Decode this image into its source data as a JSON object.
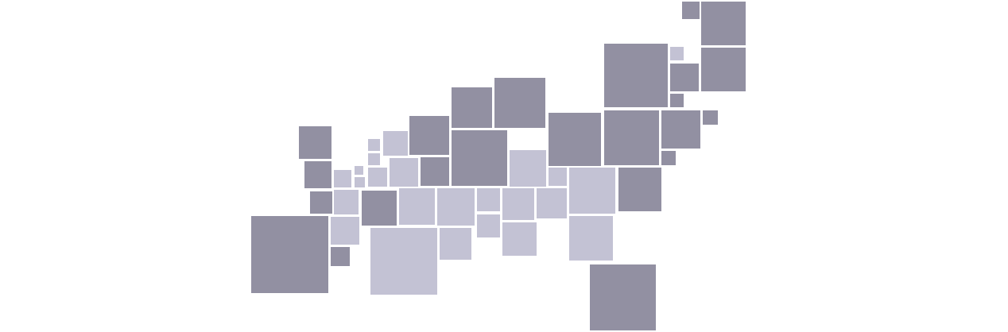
{
  "palette": {
    "dark": "#9290a2",
    "light": "#c3c2d4",
    "background": "#ffffff"
  },
  "map": {
    "type": "square cartogram",
    "legend": "none",
    "labels": "none"
  }
}
